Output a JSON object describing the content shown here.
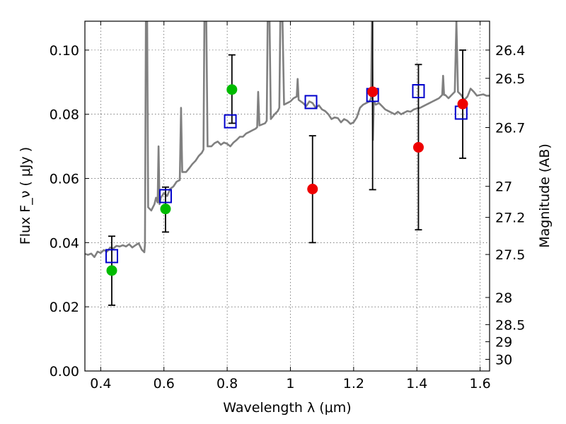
{
  "chart_data": {
    "type": "scatter",
    "xlabel": "Wavelength  λ (μm)",
    "ylabel": "Flux  F_ν  ( μJy )",
    "ylabel_right": "Magnitude (AB)",
    "xlim": [
      0.35,
      1.63
    ],
    "ylim": [
      0.0,
      0.109
    ],
    "grid": true,
    "x_ticks": [
      0.4,
      0.6,
      0.8,
      1.0,
      1.2,
      1.4,
      1.6
    ],
    "x_tick_labels": [
      "0.4",
      "0.6",
      "0.8",
      "1",
      "1.2",
      "1.4",
      "1.6"
    ],
    "y_ticks": [
      0.0,
      0.02,
      0.04,
      0.06,
      0.08,
      0.1
    ],
    "y_tick_labels": [
      "0.00",
      "0.02",
      "0.04",
      "0.06",
      "0.08",
      "0.10"
    ],
    "right_ticks": [
      {
        "label": "26.4",
        "mag": 26.4
      },
      {
        "label": "26.5",
        "mag": 26.5
      },
      {
        "label": "26.7",
        "mag": 26.7
      },
      {
        "label": "27",
        "mag": 27.0
      },
      {
        "label": "27.2",
        "mag": 27.2
      },
      {
        "label": "27.5",
        "mag": 27.5
      },
      {
        "label": "28",
        "mag": 28.0
      },
      {
        "label": "28.5",
        "mag": 28.5
      },
      {
        "label": "29",
        "mag": 29.0
      },
      {
        "label": "30",
        "mag": 30.0
      }
    ],
    "series": [
      {
        "type": "line",
        "color": "#808080",
        "points": [
          [
            0.35,
            0.0365
          ],
          [
            0.36,
            0.0362
          ],
          [
            0.37,
            0.0366
          ],
          [
            0.38,
            0.0355
          ],
          [
            0.39,
            0.0372
          ],
          [
            0.4,
            0.0368
          ],
          [
            0.41,
            0.0377
          ],
          [
            0.42,
            0.0372
          ],
          [
            0.43,
            0.0385
          ],
          [
            0.44,
            0.0382
          ],
          [
            0.45,
            0.039
          ],
          [
            0.46,
            0.0388
          ],
          [
            0.47,
            0.0392
          ],
          [
            0.48,
            0.0388
          ],
          [
            0.49,
            0.0395
          ],
          [
            0.5,
            0.0385
          ],
          [
            0.51,
            0.0392
          ],
          [
            0.52,
            0.0398
          ],
          [
            0.53,
            0.0378
          ],
          [
            0.538,
            0.037
          ],
          [
            0.54,
            0.0395
          ],
          [
            0.543,
            0.109
          ],
          [
            0.547,
            0.109
          ],
          [
            0.55,
            0.051
          ],
          [
            0.56,
            0.05
          ],
          [
            0.57,
            0.052
          ],
          [
            0.575,
            0.054
          ],
          [
            0.58,
            0.0525
          ],
          [
            0.583,
            0.07
          ],
          [
            0.586,
            0.052
          ],
          [
            0.59,
            0.054
          ],
          [
            0.6,
            0.0555
          ],
          [
            0.61,
            0.0545
          ],
          [
            0.62,
            0.0568
          ],
          [
            0.63,
            0.0575
          ],
          [
            0.64,
            0.059
          ],
          [
            0.65,
            0.0595
          ],
          [
            0.654,
            0.082
          ],
          [
            0.658,
            0.062
          ],
          [
            0.67,
            0.062
          ],
          [
            0.68,
            0.0632
          ],
          [
            0.69,
            0.0645
          ],
          [
            0.7,
            0.0655
          ],
          [
            0.71,
            0.067
          ],
          [
            0.72,
            0.068
          ],
          [
            0.725,
            0.069
          ],
          [
            0.728,
            0.109
          ],
          [
            0.734,
            0.109
          ],
          [
            0.738,
            0.07
          ],
          [
            0.75,
            0.07
          ],
          [
            0.76,
            0.071
          ],
          [
            0.77,
            0.0715
          ],
          [
            0.78,
            0.0705
          ],
          [
            0.79,
            0.0712
          ],
          [
            0.8,
            0.0708
          ],
          [
            0.81,
            0.07
          ],
          [
            0.82,
            0.0712
          ],
          [
            0.83,
            0.072
          ],
          [
            0.84,
            0.073
          ],
          [
            0.85,
            0.073
          ],
          [
            0.86,
            0.074
          ],
          [
            0.87,
            0.0745
          ],
          [
            0.88,
            0.075
          ],
          [
            0.89,
            0.0755
          ],
          [
            0.895,
            0.076
          ],
          [
            0.898,
            0.087
          ],
          [
            0.902,
            0.0765
          ],
          [
            0.91,
            0.0768
          ],
          [
            0.92,
            0.0772
          ],
          [
            0.925,
            0.078
          ],
          [
            0.928,
            0.109
          ],
          [
            0.934,
            0.109
          ],
          [
            0.938,
            0.0785
          ],
          [
            0.95,
            0.08
          ],
          [
            0.96,
            0.081
          ],
          [
            0.965,
            0.082
          ],
          [
            0.968,
            0.109
          ],
          [
            0.975,
            0.109
          ],
          [
            0.98,
            0.083
          ],
          [
            0.99,
            0.0835
          ],
          [
            1.0,
            0.084
          ],
          [
            1.01,
            0.085
          ],
          [
            1.02,
            0.0855
          ],
          [
            1.023,
            0.091
          ],
          [
            1.026,
            0.0845
          ],
          [
            1.04,
            0.0835
          ],
          [
            1.05,
            0.0825
          ],
          [
            1.06,
            0.084
          ],
          [
            1.07,
            0.0835
          ],
          [
            1.08,
            0.082
          ],
          [
            1.09,
            0.0828
          ],
          [
            1.1,
            0.0815
          ],
          [
            1.11,
            0.081
          ],
          [
            1.12,
            0.08
          ],
          [
            1.13,
            0.0785
          ],
          [
            1.14,
            0.079
          ],
          [
            1.15,
            0.0788
          ],
          [
            1.16,
            0.0775
          ],
          [
            1.17,
            0.0785
          ],
          [
            1.18,
            0.078
          ],
          [
            1.19,
            0.077
          ],
          [
            1.2,
            0.0775
          ],
          [
            1.21,
            0.079
          ],
          [
            1.22,
            0.082
          ],
          [
            1.23,
            0.083
          ],
          [
            1.24,
            0.0835
          ],
          [
            1.25,
            0.084
          ],
          [
            1.255,
            0.085
          ],
          [
            1.258,
            0.109
          ],
          [
            1.261,
            0.072
          ],
          [
            1.264,
            0.084
          ],
          [
            1.27,
            0.083
          ],
          [
            1.28,
            0.0835
          ],
          [
            1.29,
            0.0825
          ],
          [
            1.3,
            0.0815
          ],
          [
            1.31,
            0.081
          ],
          [
            1.32,
            0.0805
          ],
          [
            1.33,
            0.08
          ],
          [
            1.34,
            0.0808
          ],
          [
            1.35,
            0.08
          ],
          [
            1.36,
            0.0805
          ],
          [
            1.37,
            0.081
          ],
          [
            1.38,
            0.0808
          ],
          [
            1.39,
            0.0815
          ],
          [
            1.4,
            0.0818
          ],
          [
            1.41,
            0.082
          ],
          [
            1.42,
            0.0825
          ],
          [
            1.43,
            0.083
          ],
          [
            1.44,
            0.0835
          ],
          [
            1.45,
            0.084
          ],
          [
            1.46,
            0.0845
          ],
          [
            1.47,
            0.085
          ],
          [
            1.48,
            0.086
          ],
          [
            1.483,
            0.092
          ],
          [
            1.486,
            0.086
          ],
          [
            1.49,
            0.086
          ],
          [
            1.5,
            0.085
          ],
          [
            1.51,
            0.086
          ],
          [
            1.52,
            0.087
          ],
          [
            1.525,
            0.109
          ],
          [
            1.53,
            0.087
          ],
          [
            1.54,
            0.086
          ],
          [
            1.55,
            0.0845
          ],
          [
            1.56,
            0.0855
          ],
          [
            1.57,
            0.088
          ],
          [
            1.58,
            0.087
          ],
          [
            1.59,
            0.0858
          ],
          [
            1.6,
            0.086
          ],
          [
            1.61,
            0.0862
          ],
          [
            1.62,
            0.0858
          ],
          [
            1.63,
            0.0858
          ]
        ]
      },
      {
        "type": "errorbar",
        "color": "#000000",
        "points": [
          {
            "x": 0.435,
            "low": 0.0205,
            "high": 0.042
          },
          {
            "x": 0.605,
            "low": 0.0433,
            "high": 0.0573
          },
          {
            "x": 0.815,
            "low": 0.0772,
            "high": 0.0985
          },
          {
            "x": 1.07,
            "low": 0.04,
            "high": 0.0733
          },
          {
            "x": 1.26,
            "low": 0.0565,
            "high": 0.109
          },
          {
            "x": 1.405,
            "low": 0.044,
            "high": 0.0955
          },
          {
            "x": 1.545,
            "low": 0.0663,
            "high": 0.1
          }
        ]
      },
      {
        "type": "scatter",
        "marker": "open-square",
        "color": "#0000cc",
        "x": [
          0.435,
          0.605,
          0.81,
          1.065,
          1.26,
          1.405,
          1.54
        ],
        "y": [
          0.0358,
          0.0545,
          0.0778,
          0.0838,
          0.086,
          0.0872,
          0.0805
        ]
      },
      {
        "type": "scatter",
        "marker": "filled-circle",
        "color": "#00bb00",
        "x": [
          0.435,
          0.605,
          0.815
        ],
        "y": [
          0.0313,
          0.0505,
          0.0877
        ]
      },
      {
        "type": "scatter",
        "marker": "filled-circle",
        "color": "#ee0000",
        "x": [
          1.07,
          1.26,
          1.405,
          1.545
        ],
        "y": [
          0.0567,
          0.087,
          0.0697,
          0.0832
        ]
      }
    ]
  }
}
